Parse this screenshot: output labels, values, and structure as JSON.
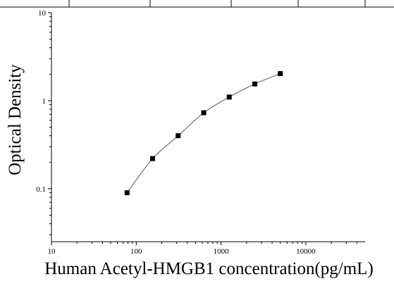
{
  "chart_data": {
    "type": "scatter",
    "title": "",
    "xlabel": "Human Acetyl-HMGB1 concentration(pg/mL)",
    "ylabel": "Optical Density",
    "x_scale": "log",
    "y_scale": "log",
    "xlim": [
      10,
      50000
    ],
    "ylim": [
      0.025,
      10
    ],
    "x_ticks": [
      10,
      100,
      1000,
      10000
    ],
    "x_tick_labels": [
      "10",
      "100",
      "1000",
      "10000"
    ],
    "y_ticks": [
      0.1,
      1,
      10
    ],
    "y_tick_labels": [
      "0.1",
      "1",
      "10"
    ],
    "grid": false,
    "series": [
      {
        "x": [
          78,
          156,
          312,
          625,
          1250,
          2500,
          5000
        ],
        "y": [
          0.09,
          0.22,
          0.4,
          0.73,
          1.1,
          1.55,
          2.03
        ]
      }
    ],
    "fit_curve": true
  }
}
